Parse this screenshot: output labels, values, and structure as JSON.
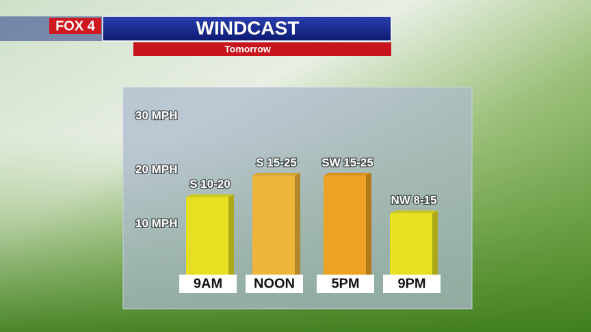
{
  "chart_data": {
    "type": "bar",
    "logo": "FOX 4",
    "title": "WINDCAST",
    "subtitle": "Tomorrow",
    "categories": [
      "9AM",
      "NOON",
      "5PM",
      "9PM"
    ],
    "values": [
      15,
      19,
      19,
      12
    ],
    "value_labels": [
      "S 10-20",
      "S 15-25",
      "SW 15-25",
      "NW 8-15"
    ],
    "colors": [
      "#e6df22",
      "#efb53a",
      "#eea225",
      "#e6df22"
    ],
    "ylim": [
      0,
      30
    ],
    "yticks": [
      {
        "value": 10,
        "label": "10 MPH"
      },
      {
        "value": 20,
        "label": "20 MPH"
      },
      {
        "value": 30,
        "label": "30 MPH"
      }
    ],
    "grid": false
  }
}
